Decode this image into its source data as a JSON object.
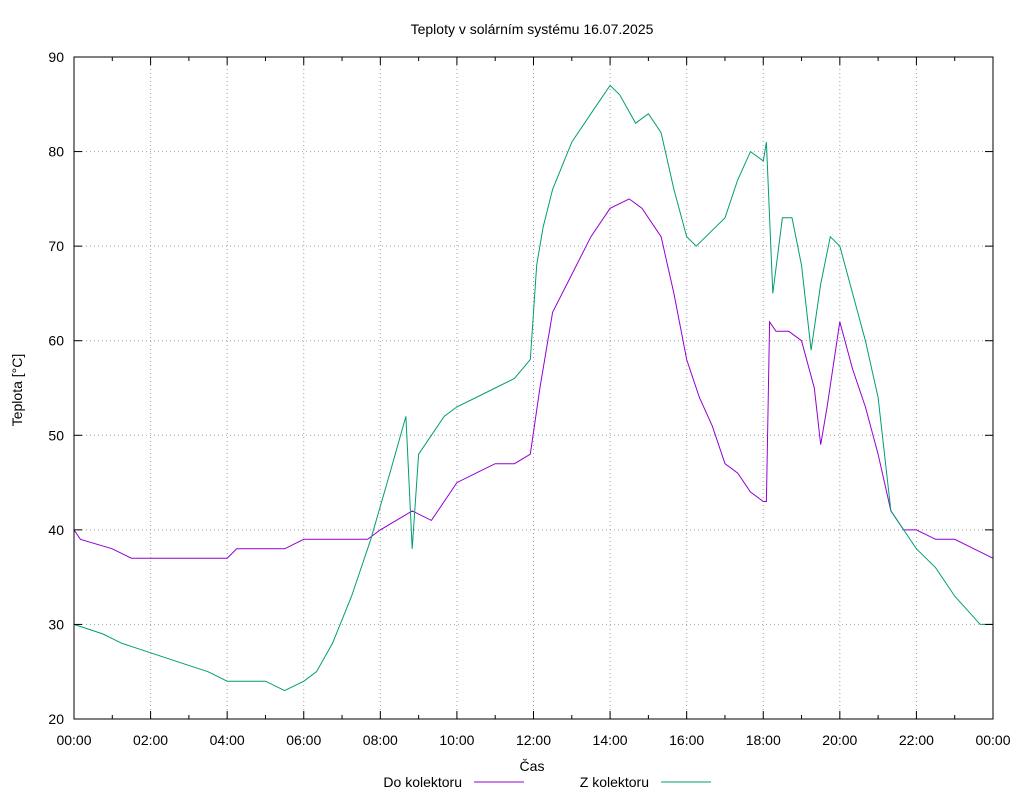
{
  "chart_data": {
    "type": "line",
    "title": "Teploty v solárním systému 16.07.2025",
    "xlabel": "Čas",
    "ylabel": "Teplota [°C]",
    "xlim": [
      "00:00",
      "24:00"
    ],
    "ylim": [
      20,
      90
    ],
    "grid": true,
    "legend_position": "bottom-center",
    "x_tick_labels": [
      "00:00",
      "02:00",
      "04:00",
      "06:00",
      "08:00",
      "10:00",
      "12:00",
      "14:00",
      "16:00",
      "18:00",
      "20:00",
      "22:00",
      "00:00"
    ],
    "y_ticks": [
      20,
      30,
      40,
      50,
      60,
      70,
      80,
      90
    ],
    "series": [
      {
        "name": "Do kolektoru",
        "color": "#9400d3",
        "x": [
          "00:00",
          "00:10",
          "01:00",
          "01:30",
          "03:00",
          "04:00",
          "04:15",
          "05:30",
          "06:00",
          "07:00",
          "07:40",
          "08:00",
          "08:50",
          "09:20",
          "09:40",
          "10:00",
          "10:30",
          "11:00",
          "11:30",
          "11:55",
          "12:10",
          "12:30",
          "13:00",
          "13:30",
          "14:00",
          "14:30",
          "14:50",
          "15:20",
          "15:40",
          "16:00",
          "16:20",
          "16:40",
          "17:00",
          "17:20",
          "17:40",
          "18:00",
          "18:05",
          "18:10",
          "18:20",
          "18:40",
          "19:00",
          "19:20",
          "19:30",
          "19:40",
          "20:00",
          "20:20",
          "20:40",
          "21:00",
          "21:20",
          "21:40",
          "22:00",
          "22:30",
          "23:00",
          "23:30",
          "24:00"
        ],
        "y": [
          40,
          39,
          38,
          37,
          37,
          37,
          38,
          38,
          39,
          39,
          39,
          40,
          42,
          41,
          43,
          45,
          46,
          47,
          47,
          48,
          55,
          63,
          67,
          71,
          74,
          75,
          74,
          71,
          65,
          58,
          54,
          51,
          47,
          46,
          44,
          43,
          43,
          62,
          61,
          61,
          60,
          55,
          49,
          53,
          62,
          57,
          53,
          48,
          42,
          40,
          40,
          39,
          39,
          38,
          37
        ]
      },
      {
        "name": "Z kolektoru",
        "color": "#009e73",
        "x": [
          "00:00",
          "00:45",
          "01:15",
          "02:00",
          "02:45",
          "03:30",
          "04:00",
          "05:00",
          "05:30",
          "06:00",
          "06:20",
          "06:45",
          "07:15",
          "07:45",
          "08:15",
          "08:40",
          "08:50",
          "09:00",
          "09:20",
          "09:40",
          "10:00",
          "10:30",
          "11:00",
          "11:30",
          "11:55",
          "12:05",
          "12:15",
          "12:30",
          "13:00",
          "13:30",
          "14:00",
          "14:15",
          "14:40",
          "15:00",
          "15:20",
          "15:40",
          "16:00",
          "16:15",
          "16:30",
          "17:00",
          "17:20",
          "17:40",
          "18:00",
          "18:05",
          "18:15",
          "18:30",
          "18:45",
          "19:00",
          "19:15",
          "19:30",
          "19:45",
          "20:00",
          "20:20",
          "20:40",
          "21:00",
          "21:20",
          "21:40",
          "22:00",
          "22:30",
          "23:00",
          "23:40",
          "24:00"
        ],
        "y": [
          30,
          29,
          28,
          27,
          26,
          25,
          24,
          24,
          23,
          24,
          25,
          28,
          33,
          39,
          46,
          52,
          38,
          48,
          50,
          52,
          53,
          54,
          55,
          56,
          58,
          68,
          72,
          76,
          81,
          84,
          87,
          86,
          83,
          84,
          82,
          76,
          71,
          70,
          71,
          73,
          77,
          80,
          79,
          81,
          65,
          73,
          73,
          68,
          59,
          66,
          71,
          70,
          65,
          60,
          54,
          42,
          40,
          38,
          36,
          33,
          30,
          30
        ]
      }
    ]
  }
}
